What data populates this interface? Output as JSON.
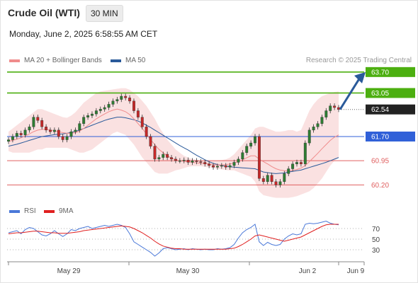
{
  "header": {
    "title": "Crude Oil (WTI)",
    "interval": "30 MIN",
    "datetime": "Monday, June 2, 2025 6:58:55 AM CET"
  },
  "credit": "Research © 2025 Trading Central",
  "legend": {
    "price": [
      {
        "label": "MA 20 + Bollinger Bands",
        "color": "#f08c8c"
      },
      {
        "label": "MA 50",
        "color": "#2a5a9a"
      }
    ],
    "rsi": [
      {
        "label": "RSI",
        "color": "#4a78d8"
      },
      {
        "label": "9MA",
        "color": "#e02020"
      }
    ]
  },
  "colors": {
    "resistance": "#4caf10",
    "pivot": "#3060d8",
    "support": "#e06060",
    "last_price": "#222222",
    "arrow": "#2a5a9a",
    "bollinger_fill": "#fadede",
    "up_candle": "#2e7d32",
    "down_candle": "#c62828"
  },
  "chart_data": [
    {
      "type": "candlestick",
      "title": "Crude Oil (WTI)",
      "x_ticks": [
        "May 29",
        "May 30",
        "Jun 2",
        "Jun 9"
      ],
      "y_range": [
        59.9,
        63.85
      ],
      "levels": [
        {
          "value": 63.7,
          "label": "63.70",
          "kind": "resistance"
        },
        {
          "value": 63.05,
          "label": "63.05",
          "kind": "resistance"
        },
        {
          "value": 62.54,
          "label": "62.54",
          "kind": "last"
        },
        {
          "value": 61.7,
          "label": "61.70",
          "kind": "pivot"
        },
        {
          "value": 60.95,
          "label": "60.95",
          "kind": "support"
        },
        {
          "value": 60.2,
          "label": "60.20",
          "kind": "support"
        }
      ],
      "close_series": [
        61.6,
        61.7,
        61.8,
        61.75,
        61.9,
        62.0,
        62.3,
        62.2,
        62.0,
        61.9,
        61.85,
        61.9,
        61.7,
        61.6,
        61.7,
        61.85,
        61.9,
        62.1,
        62.3,
        62.35,
        62.4,
        62.5,
        62.55,
        62.6,
        62.7,
        62.8,
        62.85,
        62.95,
        62.9,
        62.8,
        62.5,
        62.3,
        62.0,
        61.7,
        61.4,
        61.0,
        61.05,
        61.15,
        61.05,
        61.0,
        60.95,
        60.95,
        60.97,
        60.9,
        60.95,
        60.92,
        60.9,
        60.85,
        60.8,
        60.75,
        60.78,
        60.8,
        60.75,
        60.8,
        60.9,
        61.0,
        61.2,
        61.4,
        61.5,
        61.7,
        60.4,
        60.3,
        60.5,
        60.3,
        60.2,
        60.3,
        60.55,
        60.7,
        60.85,
        60.9,
        60.85,
        61.5,
        61.9,
        62.0,
        62.1,
        62.3,
        62.5,
        62.65,
        62.6,
        62.54
      ],
      "ma20": [
        61.55,
        61.58,
        61.62,
        61.66,
        61.72,
        61.78,
        61.85,
        61.9,
        61.92,
        61.93,
        61.9,
        61.88,
        61.85,
        61.82,
        61.8,
        61.8,
        61.82,
        61.87,
        61.95,
        62.05,
        62.15,
        62.25,
        62.33,
        62.4,
        62.47,
        62.52,
        62.55,
        62.52,
        62.47,
        62.38,
        62.25,
        62.1,
        61.95,
        61.78,
        61.6,
        61.45,
        61.3,
        61.2,
        61.1,
        61.03,
        60.98,
        60.95,
        60.93,
        60.92,
        60.9,
        60.88,
        60.87,
        60.86,
        60.85,
        60.83,
        60.82,
        60.82,
        60.83,
        60.85,
        60.88,
        60.92,
        60.98,
        61.04,
        61.1,
        61.1,
        61.0,
        60.92,
        60.85,
        60.77,
        60.7,
        60.66,
        60.64,
        60.63,
        60.65,
        60.68,
        60.72,
        60.8,
        60.92,
        61.05,
        61.18,
        61.32,
        61.45,
        61.58,
        61.68,
        61.75
      ],
      "bb_upper": [
        61.85,
        61.95,
        62.05,
        62.15,
        62.25,
        62.35,
        62.45,
        62.55,
        62.55,
        62.5,
        62.45,
        62.4,
        62.35,
        62.3,
        62.28,
        62.35,
        62.45,
        62.6,
        62.75,
        62.85,
        62.95,
        63.05,
        63.1,
        63.12,
        63.14,
        63.16,
        63.18,
        63.2,
        63.2,
        63.15,
        63.05,
        62.95,
        62.8,
        62.65,
        62.45,
        62.25,
        62.0,
        61.8,
        61.6,
        61.45,
        61.3,
        61.2,
        61.1,
        61.05,
        61.0,
        60.98,
        60.96,
        60.96,
        60.96,
        60.96,
        60.96,
        60.97,
        60.99,
        61.05,
        61.15,
        61.3,
        61.45,
        61.6,
        61.75,
        61.95,
        62.0,
        62.0,
        61.95,
        61.9,
        61.85,
        61.85,
        61.87,
        61.9,
        61.9,
        61.85,
        61.9,
        62.2,
        62.5,
        62.7,
        62.85,
        62.95,
        63.0,
        63.05,
        63.08,
        63.1
      ],
      "bb_lower": [
        61.25,
        61.2,
        61.2,
        61.2,
        61.2,
        61.2,
        61.25,
        61.3,
        61.3,
        61.35,
        61.35,
        61.35,
        61.35,
        61.35,
        61.35,
        61.3,
        61.25,
        61.2,
        61.2,
        61.25,
        61.3,
        61.4,
        61.5,
        61.6,
        61.7,
        61.8,
        61.85,
        61.8,
        61.75,
        61.6,
        61.45,
        61.25,
        61.05,
        60.9,
        60.75,
        60.6,
        60.55,
        60.55,
        60.55,
        60.6,
        60.65,
        60.68,
        60.72,
        60.76,
        60.78,
        60.78,
        60.78,
        60.76,
        60.74,
        60.72,
        60.7,
        60.68,
        60.66,
        60.65,
        60.65,
        60.6,
        60.55,
        60.5,
        60.45,
        60.3,
        60.0,
        59.88,
        59.85,
        59.82,
        59.8,
        59.8,
        59.8,
        59.8,
        59.82,
        59.85,
        59.9,
        59.95,
        60.0,
        60.1,
        60.25,
        60.4,
        60.6,
        60.8,
        60.95,
        61.05
      ],
      "ma50": [
        61.4,
        61.43,
        61.46,
        61.5,
        61.54,
        61.58,
        61.62,
        61.66,
        61.7,
        61.72,
        61.74,
        61.76,
        61.77,
        61.78,
        61.8,
        61.83,
        61.86,
        61.9,
        61.95,
        62.0,
        62.05,
        62.1,
        62.15,
        62.2,
        62.24,
        62.27,
        62.3,
        62.3,
        62.28,
        62.25,
        62.22,
        62.18,
        62.12,
        62.05,
        61.98,
        61.9,
        61.82,
        61.74,
        61.66,
        61.58,
        61.5,
        61.42,
        61.35,
        61.28,
        61.2,
        61.12,
        61.05,
        60.98,
        60.92,
        60.87,
        60.83,
        60.8,
        60.78,
        60.76,
        60.75,
        60.74,
        60.73,
        60.72,
        60.71,
        60.7,
        60.65,
        60.6,
        60.58,
        60.56,
        60.55,
        60.56,
        60.57,
        60.6,
        60.62,
        60.64,
        60.66,
        60.7,
        60.74,
        60.78,
        60.82,
        60.86,
        60.9,
        60.95,
        61.0,
        61.05
      ]
    },
    {
      "type": "line",
      "title": "RSI",
      "y_ticks": [
        70,
        50,
        30
      ],
      "y_range": [
        10,
        90
      ],
      "series": [
        {
          "name": "RSI",
          "values": [
            62,
            64,
            66,
            60,
            68,
            72,
            70,
            64,
            58,
            56,
            60,
            66,
            60,
            55,
            60,
            68,
            66,
            70,
            72,
            74,
            70,
            72,
            74,
            76,
            74,
            76,
            78,
            76,
            72,
            60,
            45,
            40,
            35,
            30,
            25,
            18,
            24,
            32,
            34,
            32,
            30,
            31,
            32,
            30,
            32,
            31,
            30,
            31,
            30,
            30,
            32,
            31,
            32,
            34,
            40,
            52,
            62,
            68,
            72,
            78,
            45,
            38,
            44,
            40,
            38,
            40,
            50,
            56,
            60,
            58,
            60,
            78,
            80,
            79,
            80,
            82,
            84,
            80,
            78,
            77
          ]
        },
        {
          "name": "9MA",
          "values": [
            60,
            61,
            62,
            62,
            63,
            64,
            65,
            65,
            64,
            63,
            62,
            62,
            61,
            61,
            61,
            62,
            63,
            64,
            66,
            67,
            68,
            69,
            70,
            71,
            72,
            73,
            74,
            75,
            74,
            73,
            70,
            66,
            62,
            57,
            52,
            46,
            41,
            37,
            35,
            33,
            32,
            32,
            31,
            31,
            31,
            31,
            31,
            31,
            31,
            31,
            31,
            31,
            31,
            32,
            33,
            36,
            40,
            45,
            50,
            56,
            58,
            56,
            54,
            52,
            50,
            48,
            46,
            48,
            50,
            52,
            54,
            58,
            62,
            66,
            70,
            74,
            77,
            78,
            78,
            78
          ]
        }
      ]
    }
  ]
}
